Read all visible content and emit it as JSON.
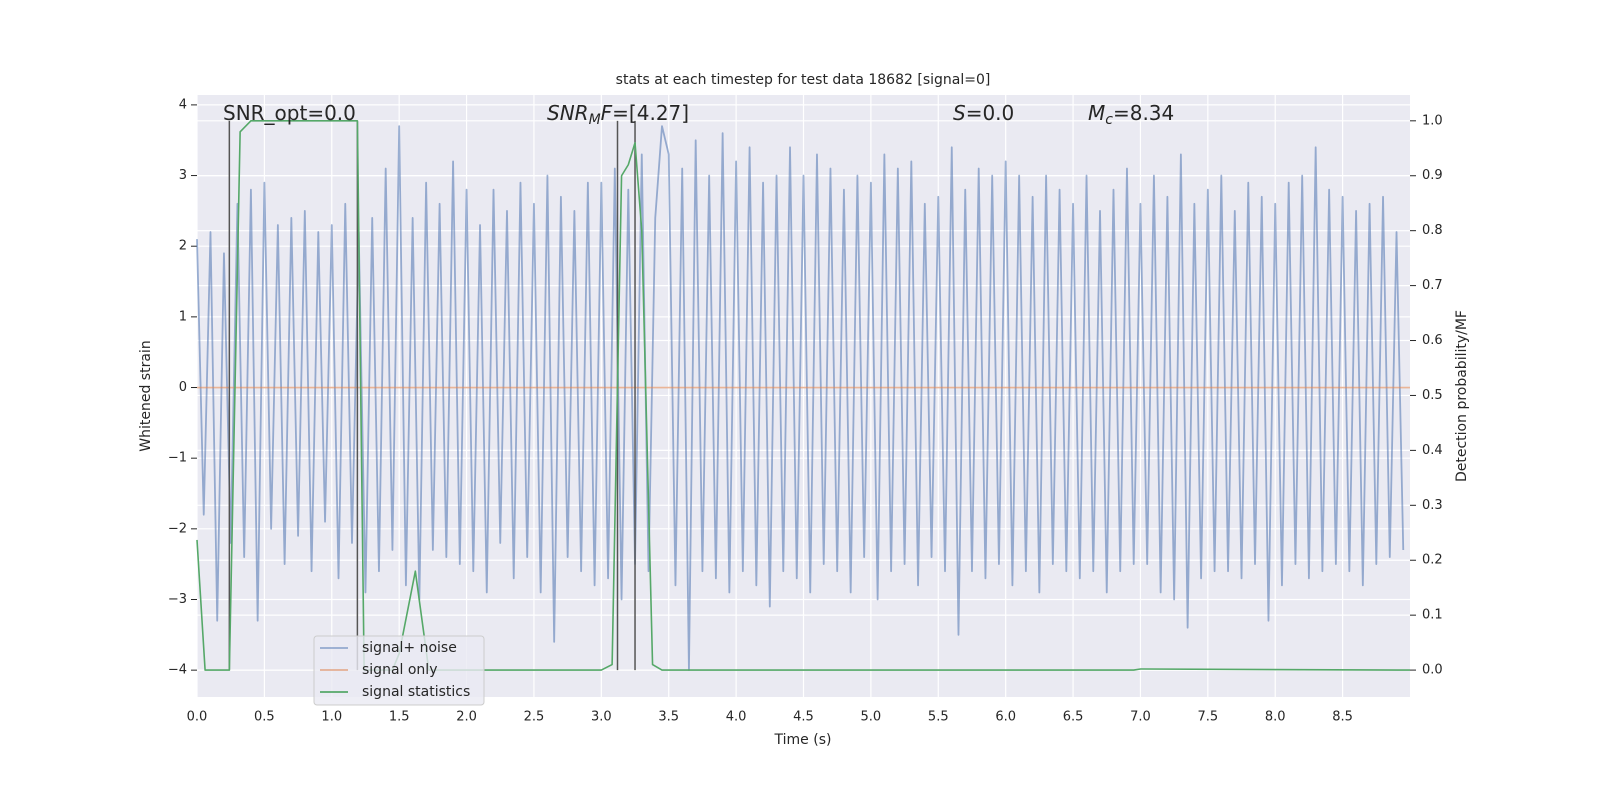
{
  "chart_data": {
    "type": "line",
    "title": "stats at each timestep for test data 18682 [signal=0]",
    "x_label": "Time (s)",
    "y_label": "Whitened strain",
    "y2_label": "Detection probability/MF",
    "xlim": [
      0,
      9.0
    ],
    "ylim": [
      -4.38,
      4.14
    ],
    "y2lim": [
      -0.049,
      1.047
    ],
    "xticks": [
      {
        "value": 0,
        "label": "0.0"
      },
      0.5,
      {
        "value": 1,
        "label": "1.0"
      },
      1.5,
      {
        "value": 2,
        "label": "2.0"
      },
      2.5,
      {
        "value": 3,
        "label": "3.0"
      },
      3.5,
      {
        "value": 4,
        "label": "4.0"
      },
      4.5,
      {
        "value": 5,
        "label": "5.0"
      },
      5.5,
      {
        "value": 6,
        "label": "6.0"
      },
      6.5,
      {
        "value": 7,
        "label": "7.0"
      },
      7.5,
      {
        "value": 8,
        "label": "8.0"
      },
      8.5
    ],
    "yticks": [
      {
        "value": -4,
        "label": "−4"
      },
      {
        "value": -3,
        "label": "−3"
      },
      {
        "value": -2,
        "label": "−2"
      },
      {
        "value": -1,
        "label": "−1"
      },
      0,
      1,
      2,
      3,
      4
    ],
    "y2ticks": [
      {
        "value": 0,
        "label": "0.0"
      },
      0.1,
      0.2,
      0.3,
      0.4,
      0.5,
      0.6,
      0.7,
      0.8,
      0.9,
      {
        "value": 1,
        "label": "1.0"
      }
    ],
    "grid": true,
    "legend": "lower left",
    "series": [
      {
        "name": "signal+ noise",
        "color": "#4c72b0",
        "alpha": 0.55,
        "x": [
          0,
          0.05,
          0.1,
          0.15,
          0.2,
          0.25,
          0.3,
          0.35,
          0.4,
          0.45,
          0.5,
          0.55,
          0.6,
          0.65,
          0.7,
          0.75,
          0.8,
          0.85,
          0.9,
          0.95,
          1,
          1.05,
          1.1,
          1.15,
          1.2,
          1.25,
          1.3,
          1.35,
          1.4,
          1.45,
          1.5,
          1.55,
          1.6,
          1.65,
          1.7,
          1.75,
          1.8,
          1.85,
          1.9,
          1.95,
          2,
          2.05,
          2.1,
          2.15,
          2.2,
          2.25,
          2.3,
          2.35,
          2.4,
          2.45,
          2.5,
          2.55,
          2.6,
          2.65,
          2.7,
          2.75,
          2.8,
          2.85,
          2.9,
          2.95,
          3,
          3.05,
          3.1,
          3.15,
          3.2,
          3.25,
          3.3,
          3.35,
          3.4,
          3.45,
          3.5,
          3.55,
          3.6,
          3.65,
          3.7,
          3.75,
          3.8,
          3.85,
          3.9,
          3.95,
          4,
          4.05,
          4.1,
          4.15,
          4.2,
          4.25,
          4.3,
          4.35,
          4.4,
          4.45,
          4.5,
          4.55,
          4.6,
          4.65,
          4.7,
          4.75,
          4.8,
          4.85,
          4.9,
          4.95,
          5,
          5.05,
          5.1,
          5.15,
          5.2,
          5.25,
          5.3,
          5.35,
          5.4,
          5.45,
          5.5,
          5.55,
          5.6,
          5.65,
          5.7,
          5.75,
          5.8,
          5.85,
          5.9,
          5.95,
          6,
          6.05,
          6.1,
          6.15,
          6.2,
          6.25,
          6.3,
          6.35,
          6.4,
          6.45,
          6.5,
          6.55,
          6.6,
          6.65,
          6.7,
          6.75,
          6.8,
          6.85,
          6.9,
          6.95,
          7,
          7.05,
          7.1,
          7.15,
          7.2,
          7.25,
          7.3,
          7.35,
          7.4,
          7.45,
          7.5,
          7.55,
          7.6,
          7.65,
          7.7,
          7.75,
          7.8,
          7.85,
          7.9,
          7.95,
          8,
          8.05,
          8.1,
          8.15,
          8.2,
          8.25,
          8.3,
          8.35,
          8.4,
          8.45,
          8.5,
          8.55,
          8.6,
          8.65,
          8.7,
          8.75,
          8.8,
          8.85,
          8.9,
          8.95
        ],
        "values": [
          2.1,
          -1.8,
          2.2,
          -3.3,
          1.9,
          -2.2,
          2.6,
          -2.4,
          2.8,
          -3.3,
          2.9,
          -2.0,
          2.3,
          -2.5,
          2.4,
          -2.1,
          2.5,
          -2.6,
          2.2,
          -1.9,
          2.3,
          -2.7,
          2.6,
          -2.2,
          2.2,
          -2.9,
          2.4,
          -2.6,
          3.1,
          -2.3,
          3.7,
          -2.8,
          2.4,
          -3.0,
          2.9,
          -2.3,
          2.6,
          -2.4,
          3.2,
          -2.5,
          2.8,
          -2.6,
          2.3,
          -2.9,
          2.8,
          -2.2,
          2.5,
          -2.7,
          2.9,
          -2.4,
          2.6,
          -2.9,
          3.0,
          -3.6,
          2.7,
          -2.4,
          2.5,
          -2.6,
          2.9,
          -2.8,
          2.9,
          -2.7,
          3.1,
          -3.0,
          2.8,
          -2.5,
          3.3,
          -2.6,
          2.4,
          3.7,
          3.3,
          -2.8,
          3.1,
          -4.0,
          3.5,
          -2.6,
          3.0,
          -2.7,
          3.6,
          -2.9,
          3.2,
          -2.6,
          3.4,
          -2.8,
          2.9,
          -3.1,
          3.0,
          -2.6,
          3.4,
          -2.7,
          3.0,
          -2.9,
          3.3,
          -2.5,
          3.1,
          -2.6,
          2.8,
          -2.9,
          3.0,
          -2.4,
          2.9,
          -3.0,
          3.3,
          -2.6,
          3.1,
          -2.5,
          3.2,
          -2.8,
          2.6,
          -2.4,
          2.7,
          -2.6,
          3.4,
          -3.5,
          2.8,
          -2.6,
          3.1,
          -2.7,
          3.0,
          -2.5,
          3.2,
          -2.8,
          3.0,
          -2.6,
          2.7,
          -2.9,
          3.0,
          -2.5,
          2.8,
          -2.6,
          2.6,
          -2.7,
          3.0,
          -2.6,
          2.5,
          -2.9,
          2.8,
          -2.6,
          3.1,
          -2.5,
          2.6,
          -2.5,
          3.0,
          -2.9,
          2.7,
          -3.0,
          3.3,
          -3.4,
          2.6,
          -2.7,
          2.8,
          -2.6,
          3.0,
          -2.6,
          2.5,
          -2.7,
          2.9,
          -2.5,
          2.7,
          -3.3,
          2.6,
          -2.8,
          2.9,
          -2.5,
          3.0,
          -2.7,
          3.4,
          -2.6,
          2.8,
          -2.5,
          2.7,
          -2.6,
          2.5,
          -2.8,
          2.6,
          -2.5,
          2.7,
          -2.4,
          2.2,
          -2.3
        ]
      },
      {
        "name": "signal only",
        "color": "#dd8452",
        "alpha": 0.6,
        "x": [
          0,
          9.0
        ],
        "values": [
          0,
          0
        ]
      },
      {
        "name": "signal statistics",
        "color": "#55a868",
        "alpha": 1,
        "axis": "y2",
        "x": [
          0,
          0.06,
          0.24,
          0.32,
          0.4,
          1.19,
          1.24,
          1.45,
          1.5,
          1.62,
          1.72,
          3.0,
          3.08,
          3.15,
          3.2,
          3.25,
          3.3,
          3.38,
          3.45,
          6.95,
          7.0,
          9.0
        ],
        "values": [
          0.237,
          0.0,
          0.0,
          0.98,
          1.0,
          1.0,
          0.0,
          0.0,
          0.03,
          0.18,
          0.0,
          0.0,
          0.01,
          0.9,
          0.92,
          0.96,
          0.8,
          0.01,
          0.0,
          0.0,
          0.002,
          0.0
        ]
      }
    ],
    "vlines": [
      0.24,
      1.19,
      3.12,
      3.25
    ],
    "vline_range": [
      0,
      1
    ],
    "vline_color": "#555555",
    "annotations": [
      [
        {
          "text": "SNR_opt=0.0"
        }
      ],
      [
        {
          "text": "SNR",
          "italic": true
        },
        {
          "text": "M",
          "italic": true,
          "sub": true
        },
        {
          "text": "F",
          "italic": true
        },
        {
          "text": "=[4.27]"
        }
      ],
      [
        {
          "text": "S",
          "italic": true
        },
        {
          "text": "=0.0"
        }
      ],
      [
        {
          "text": "M",
          "italic": true
        },
        {
          "text": "c",
          "italic": true,
          "sub": true
        },
        {
          "text": "=8.34"
        }
      ]
    ]
  }
}
